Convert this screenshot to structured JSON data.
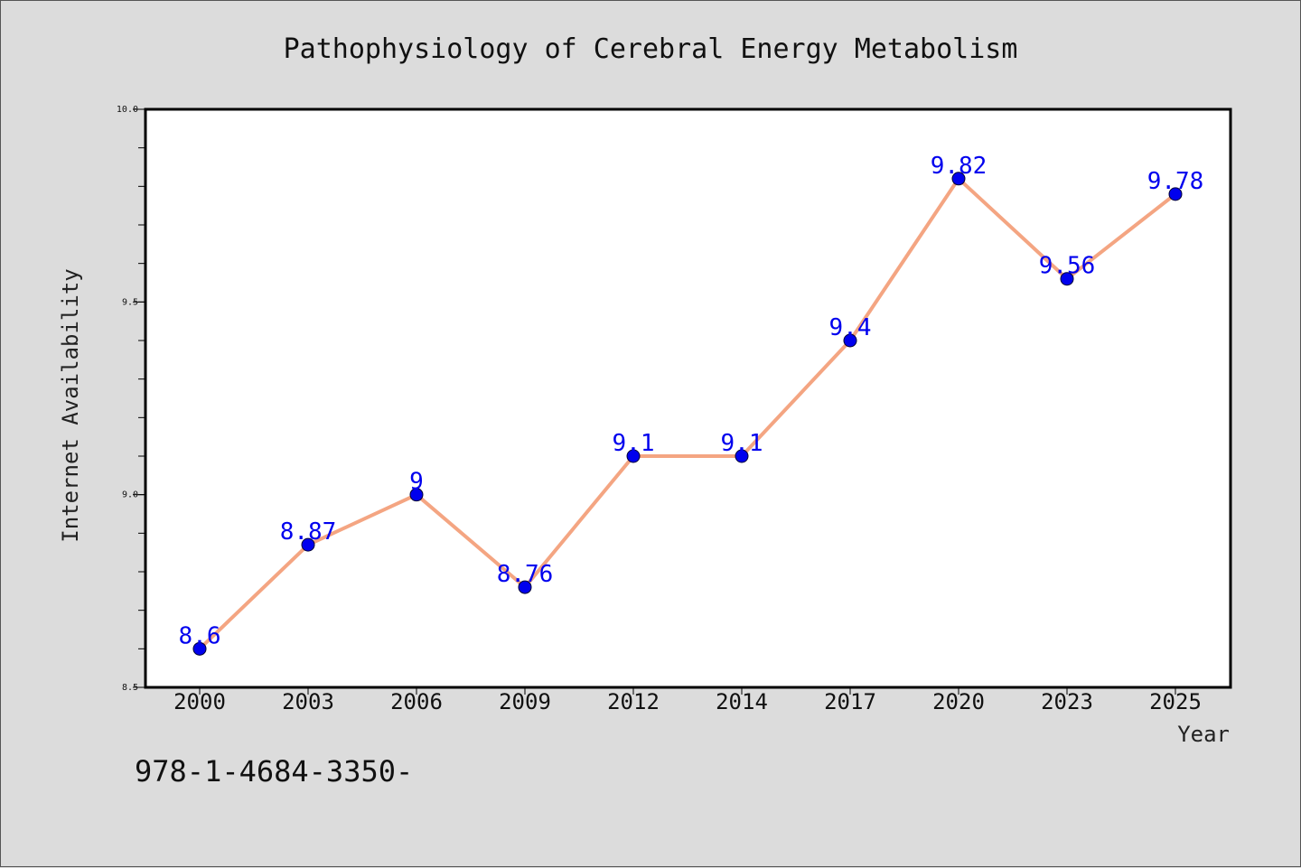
{
  "chart_data": {
    "type": "line",
    "title": "Pathophysiology of Cerebral Energy Metabolism",
    "xlabel": "Year",
    "ylabel": "Internet Availability",
    "categories": [
      "2000",
      "2003",
      "2006",
      "2009",
      "2012",
      "2014",
      "2017",
      "2020",
      "2023",
      "2025"
    ],
    "values": [
      8.6,
      8.87,
      9.0,
      8.76,
      9.1,
      9.1,
      9.4,
      9.82,
      9.56,
      9.78
    ],
    "data_labels": [
      "8.6",
      "8.87",
      "9",
      "8.76",
      "9.1",
      "9.1",
      "9.4",
      "9.82",
      "9.56",
      "9.78"
    ],
    "ylim": [
      8.5,
      10.0
    ],
    "yticks": [
      "8.5",
      "9.0",
      "9.5",
      "10.0"
    ],
    "grid": false,
    "line_color": "#f4a582",
    "marker_color": "#0000ee",
    "label_color": "#0000ee"
  },
  "footer": {
    "isbn": "978-1-4684-3350-"
  }
}
